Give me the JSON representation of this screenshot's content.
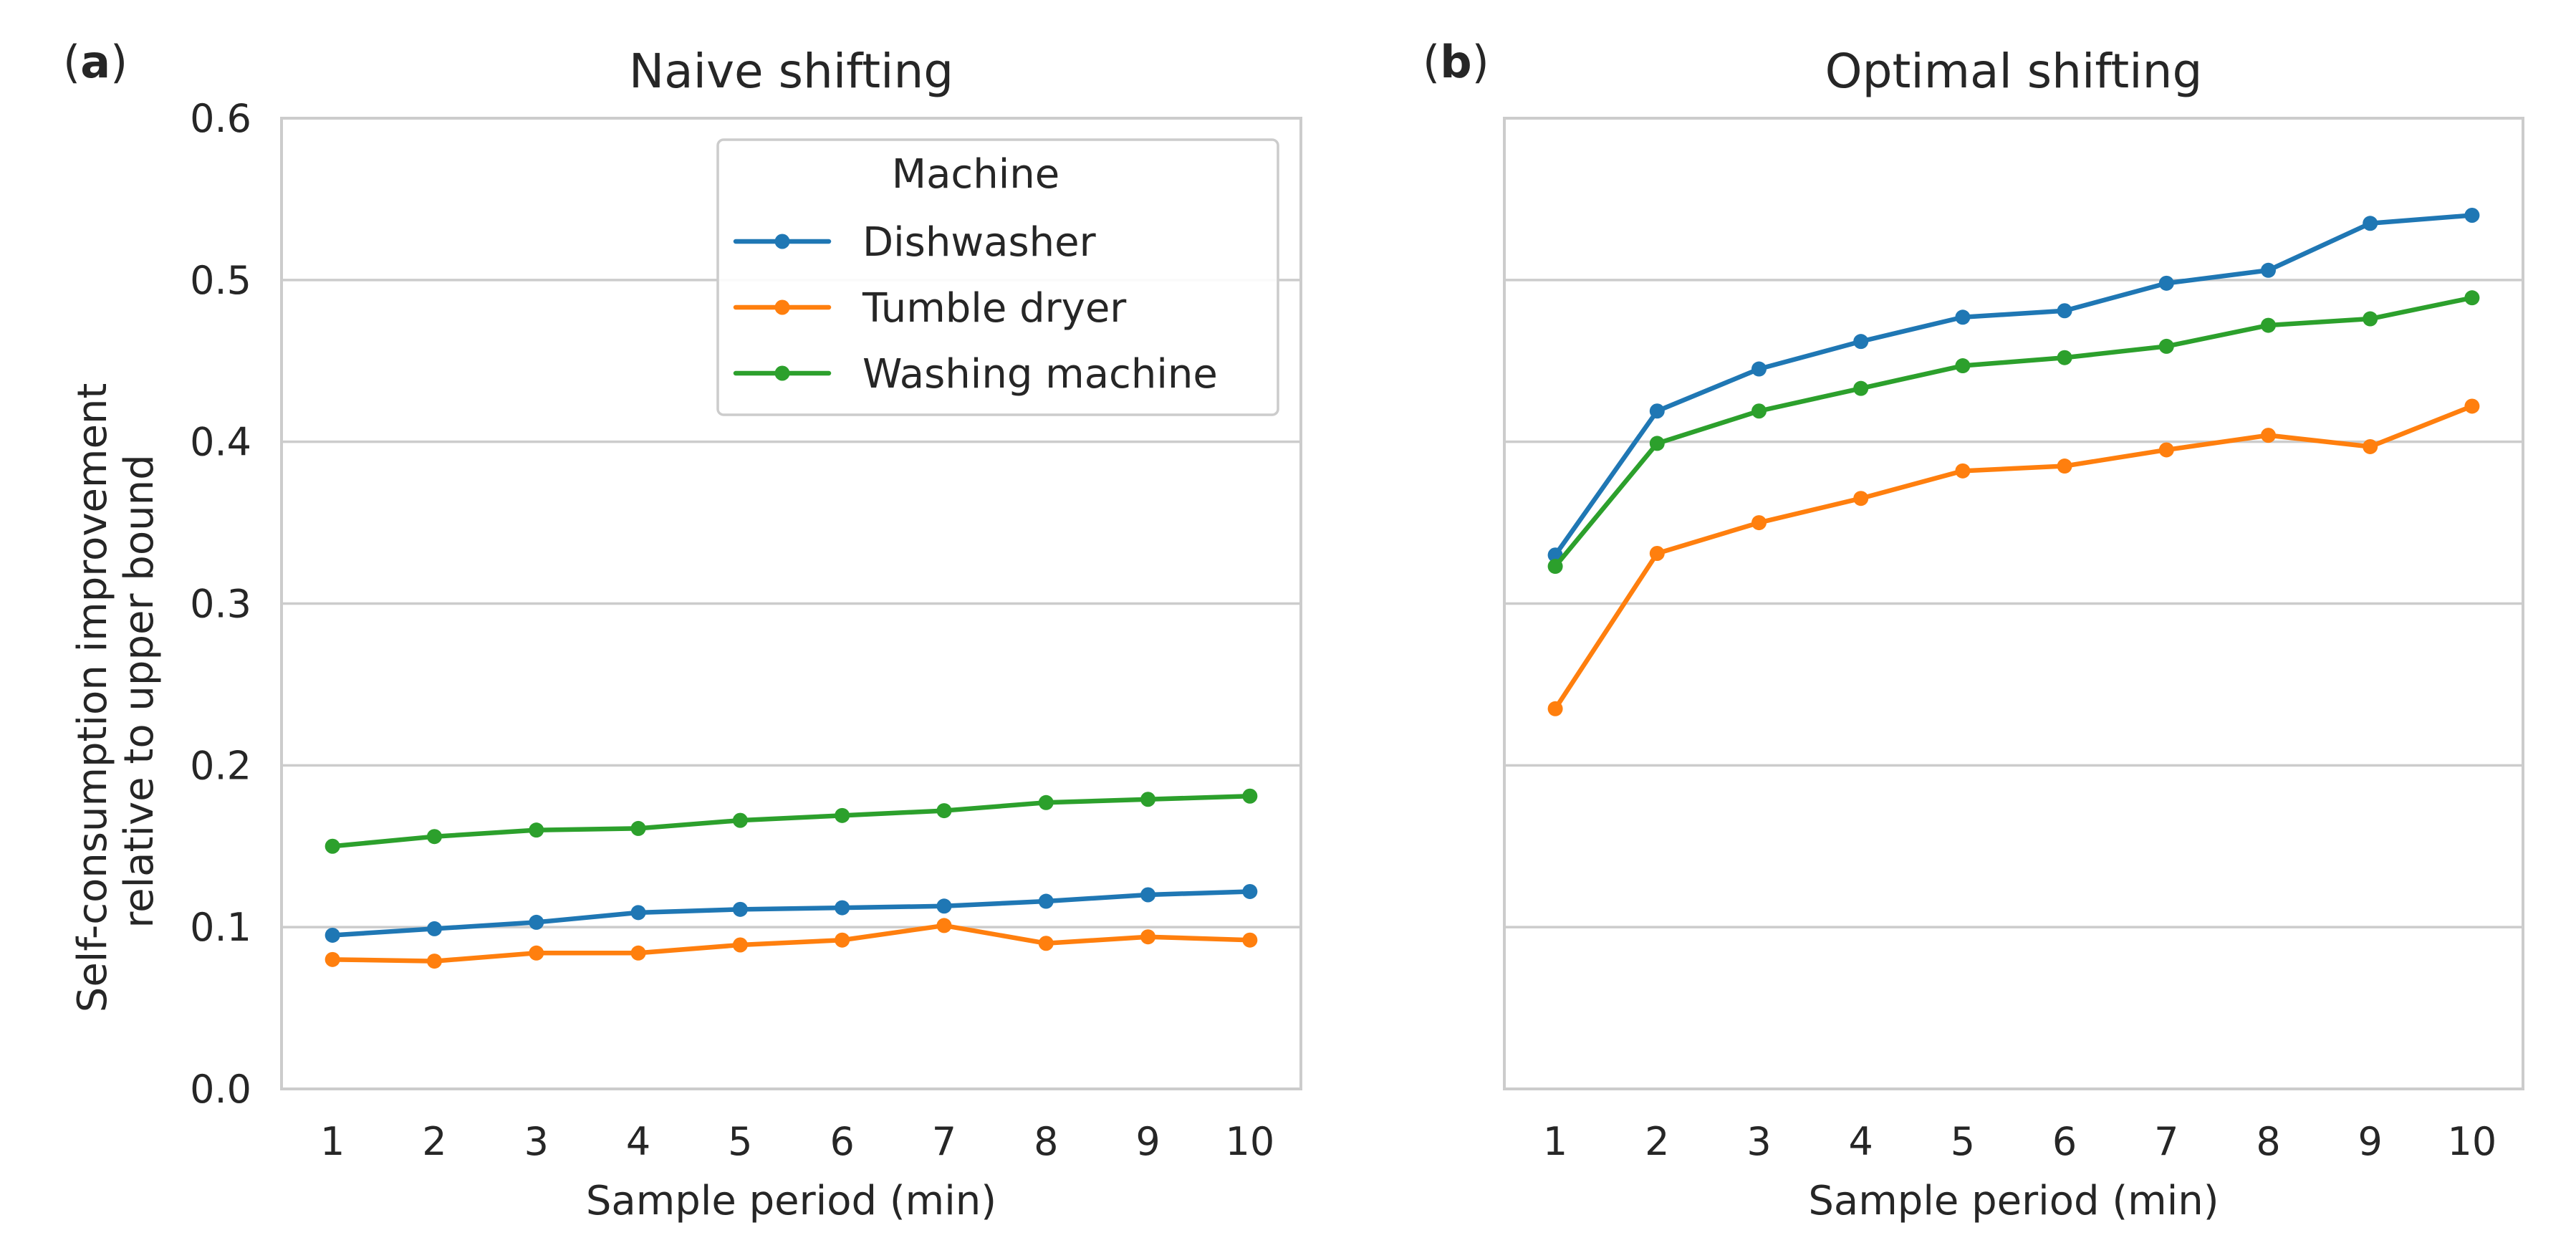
{
  "panel_labels": [
    {
      "letter": "a",
      "text": "(a)"
    },
    {
      "letter": "b",
      "text": "(b)"
    }
  ],
  "legend_title": "Machine",
  "shared_ylabel_lines": [
    "Self-consumption improvement",
    "relative to upper bound"
  ],
  "colors": {
    "Dishwasher": "#1f77b4",
    "Tumble dryer": "#ff7f0e",
    "Washing machine": "#2ca02c",
    "grid": "#cccccc",
    "frame": "#cccccc",
    "text": "#262626"
  },
  "chart_data": [
    {
      "type": "line",
      "title": "Naive shifting",
      "xlabel": "Sample period (min)",
      "ylabel": "Self-consumption improvement relative to upper bound",
      "x": [
        1,
        2,
        3,
        4,
        5,
        6,
        7,
        8,
        9,
        10
      ],
      "xticks": [
        "1",
        "2",
        "3",
        "4",
        "5",
        "6",
        "7",
        "8",
        "9",
        "10"
      ],
      "yticks": [
        "0.0",
        "0.1",
        "0.2",
        "0.3",
        "0.4",
        "0.5",
        "0.6"
      ],
      "ylim": [
        0,
        0.6
      ],
      "xlim": [
        0.5,
        10.5
      ],
      "grid": "horizontal",
      "legend": "top-right",
      "series": [
        {
          "name": "Dishwasher",
          "values": [
            0.095,
            0.099,
            0.103,
            0.109,
            0.111,
            0.112,
            0.113,
            0.116,
            0.12,
            0.122
          ]
        },
        {
          "name": "Tumble dryer",
          "values": [
            0.08,
            0.079,
            0.084,
            0.084,
            0.089,
            0.092,
            0.101,
            0.09,
            0.094,
            0.092
          ]
        },
        {
          "name": "Washing machine",
          "values": [
            0.15,
            0.156,
            0.16,
            0.161,
            0.166,
            0.169,
            0.172,
            0.177,
            0.179,
            0.181
          ]
        }
      ]
    },
    {
      "type": "line",
      "title": "Optimal shifting",
      "xlabel": "Sample period (min)",
      "x": [
        1,
        2,
        3,
        4,
        5,
        6,
        7,
        8,
        9,
        10
      ],
      "xticks": [
        "1",
        "2",
        "3",
        "4",
        "5",
        "6",
        "7",
        "8",
        "9",
        "10"
      ],
      "ylim": [
        0,
        0.6
      ],
      "xlim": [
        0.5,
        10.5
      ],
      "grid": "horizontal",
      "series": [
        {
          "name": "Dishwasher",
          "values": [
            0.33,
            0.419,
            0.445,
            0.462,
            0.477,
            0.481,
            0.498,
            0.506,
            0.535,
            0.54
          ]
        },
        {
          "name": "Tumble dryer",
          "values": [
            0.235,
            0.331,
            0.35,
            0.365,
            0.382,
            0.385,
            0.395,
            0.404,
            0.397,
            0.422
          ]
        },
        {
          "name": "Washing machine",
          "values": [
            0.323,
            0.399,
            0.419,
            0.433,
            0.447,
            0.452,
            0.459,
            0.472,
            0.476,
            0.489
          ]
        }
      ]
    }
  ]
}
